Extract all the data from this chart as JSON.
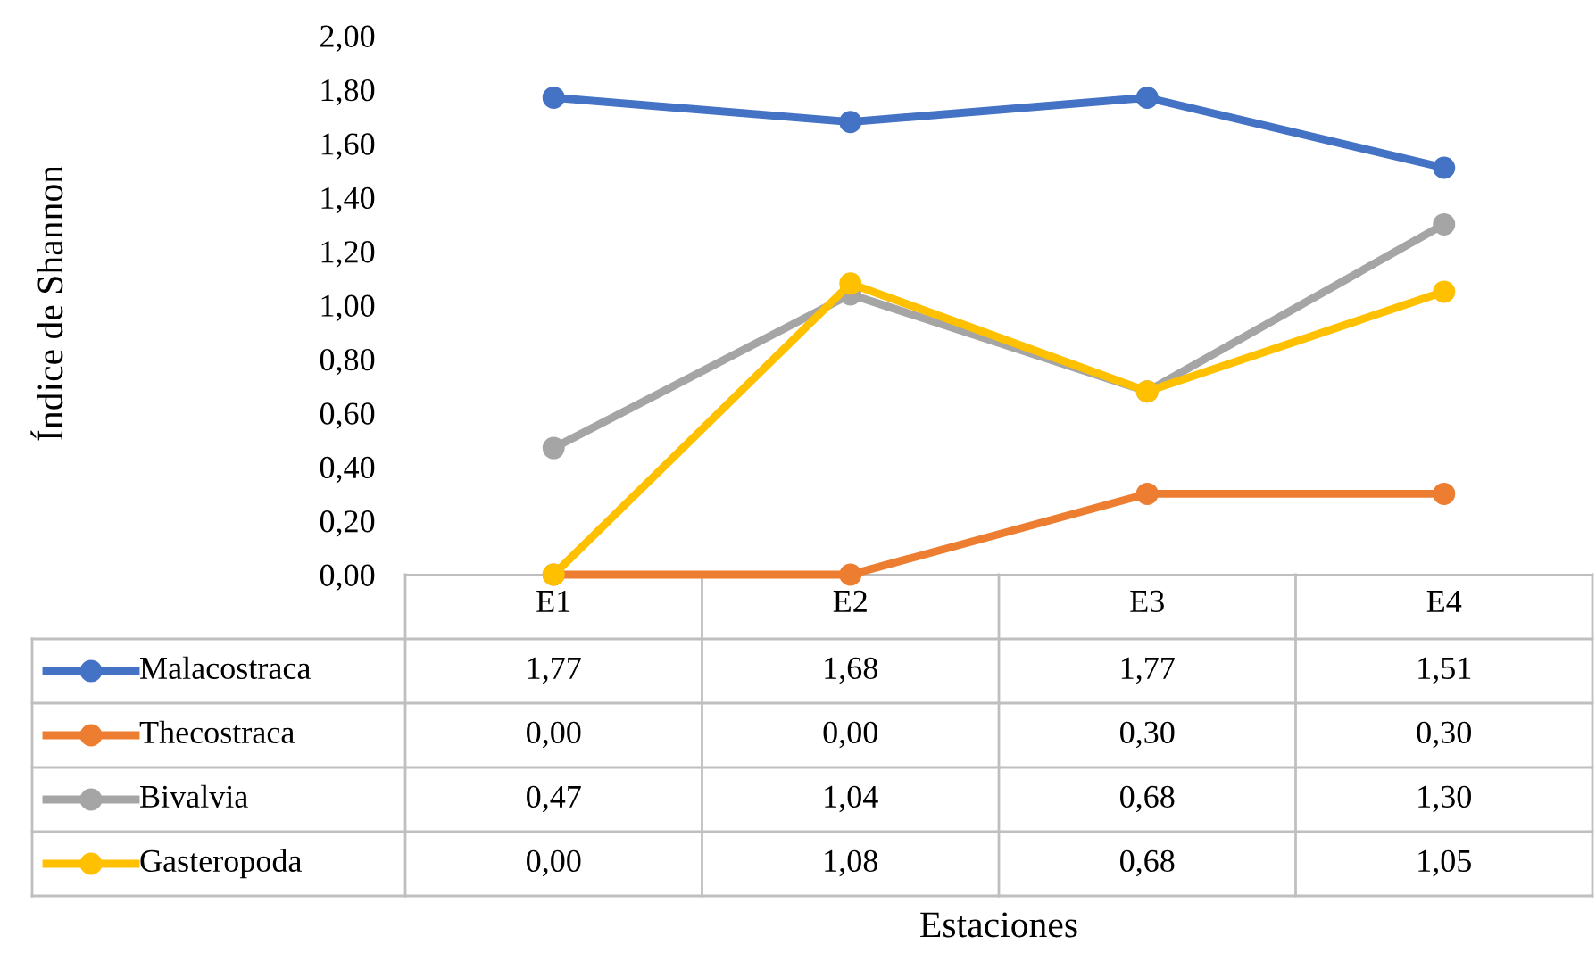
{
  "chart_data": {
    "type": "line",
    "annotations": [
      "Estaciones",
      "Índice de Shannon"
    ],
    "categories": [
      "E1",
      "E2",
      "E3",
      "E4"
    ],
    "ylim": [
      0,
      2
    ],
    "yticks": [
      {
        "value": 0,
        "label": "0,00"
      },
      {
        "value": 0.2,
        "label": "0,20"
      },
      {
        "value": 0.4,
        "label": "0,40"
      },
      {
        "value": 0.6,
        "label": "0,60"
      },
      {
        "value": 0.8,
        "label": "0,80"
      },
      {
        "value": 1.0,
        "label": "1,00"
      },
      {
        "value": 1.2,
        "label": "1,20"
      },
      {
        "value": 1.4,
        "label": "1,40"
      },
      {
        "value": 1.6,
        "label": "1,60"
      },
      {
        "value": 1.8,
        "label": "1,80"
      },
      {
        "value": 2.0,
        "label": "2,00"
      }
    ],
    "grid": false,
    "legend": "bottom",
    "marker": "circle",
    "line_style": "solid",
    "series": [
      {
        "name": "Malacostraca",
        "color": "#4472c4",
        "values": [
          1.77,
          1.68,
          1.77,
          1.51
        ],
        "value_labels": [
          "1,77",
          "1,68",
          "1,77",
          "1,51"
        ]
      },
      {
        "name": "Thecostraca",
        "color": "#ed7d31",
        "values": [
          0.0,
          0.0,
          0.3,
          0.3
        ],
        "value_labels": [
          "0,00",
          "0,00",
          "0,30",
          "0,30"
        ]
      },
      {
        "name": "Bivalvia",
        "color": "#a5a5a5",
        "values": [
          0.47,
          1.04,
          0.68,
          1.3
        ],
        "value_labels": [
          "0,47",
          "1,04",
          "0,68",
          "1,30"
        ]
      },
      {
        "name": "Gasteropoda",
        "color": "#ffc000",
        "values": [
          0.0,
          1.08,
          0.68,
          1.05
        ],
        "value_labels": [
          "0,00",
          "1,08",
          "0,68",
          "1,05"
        ]
      }
    ]
  }
}
